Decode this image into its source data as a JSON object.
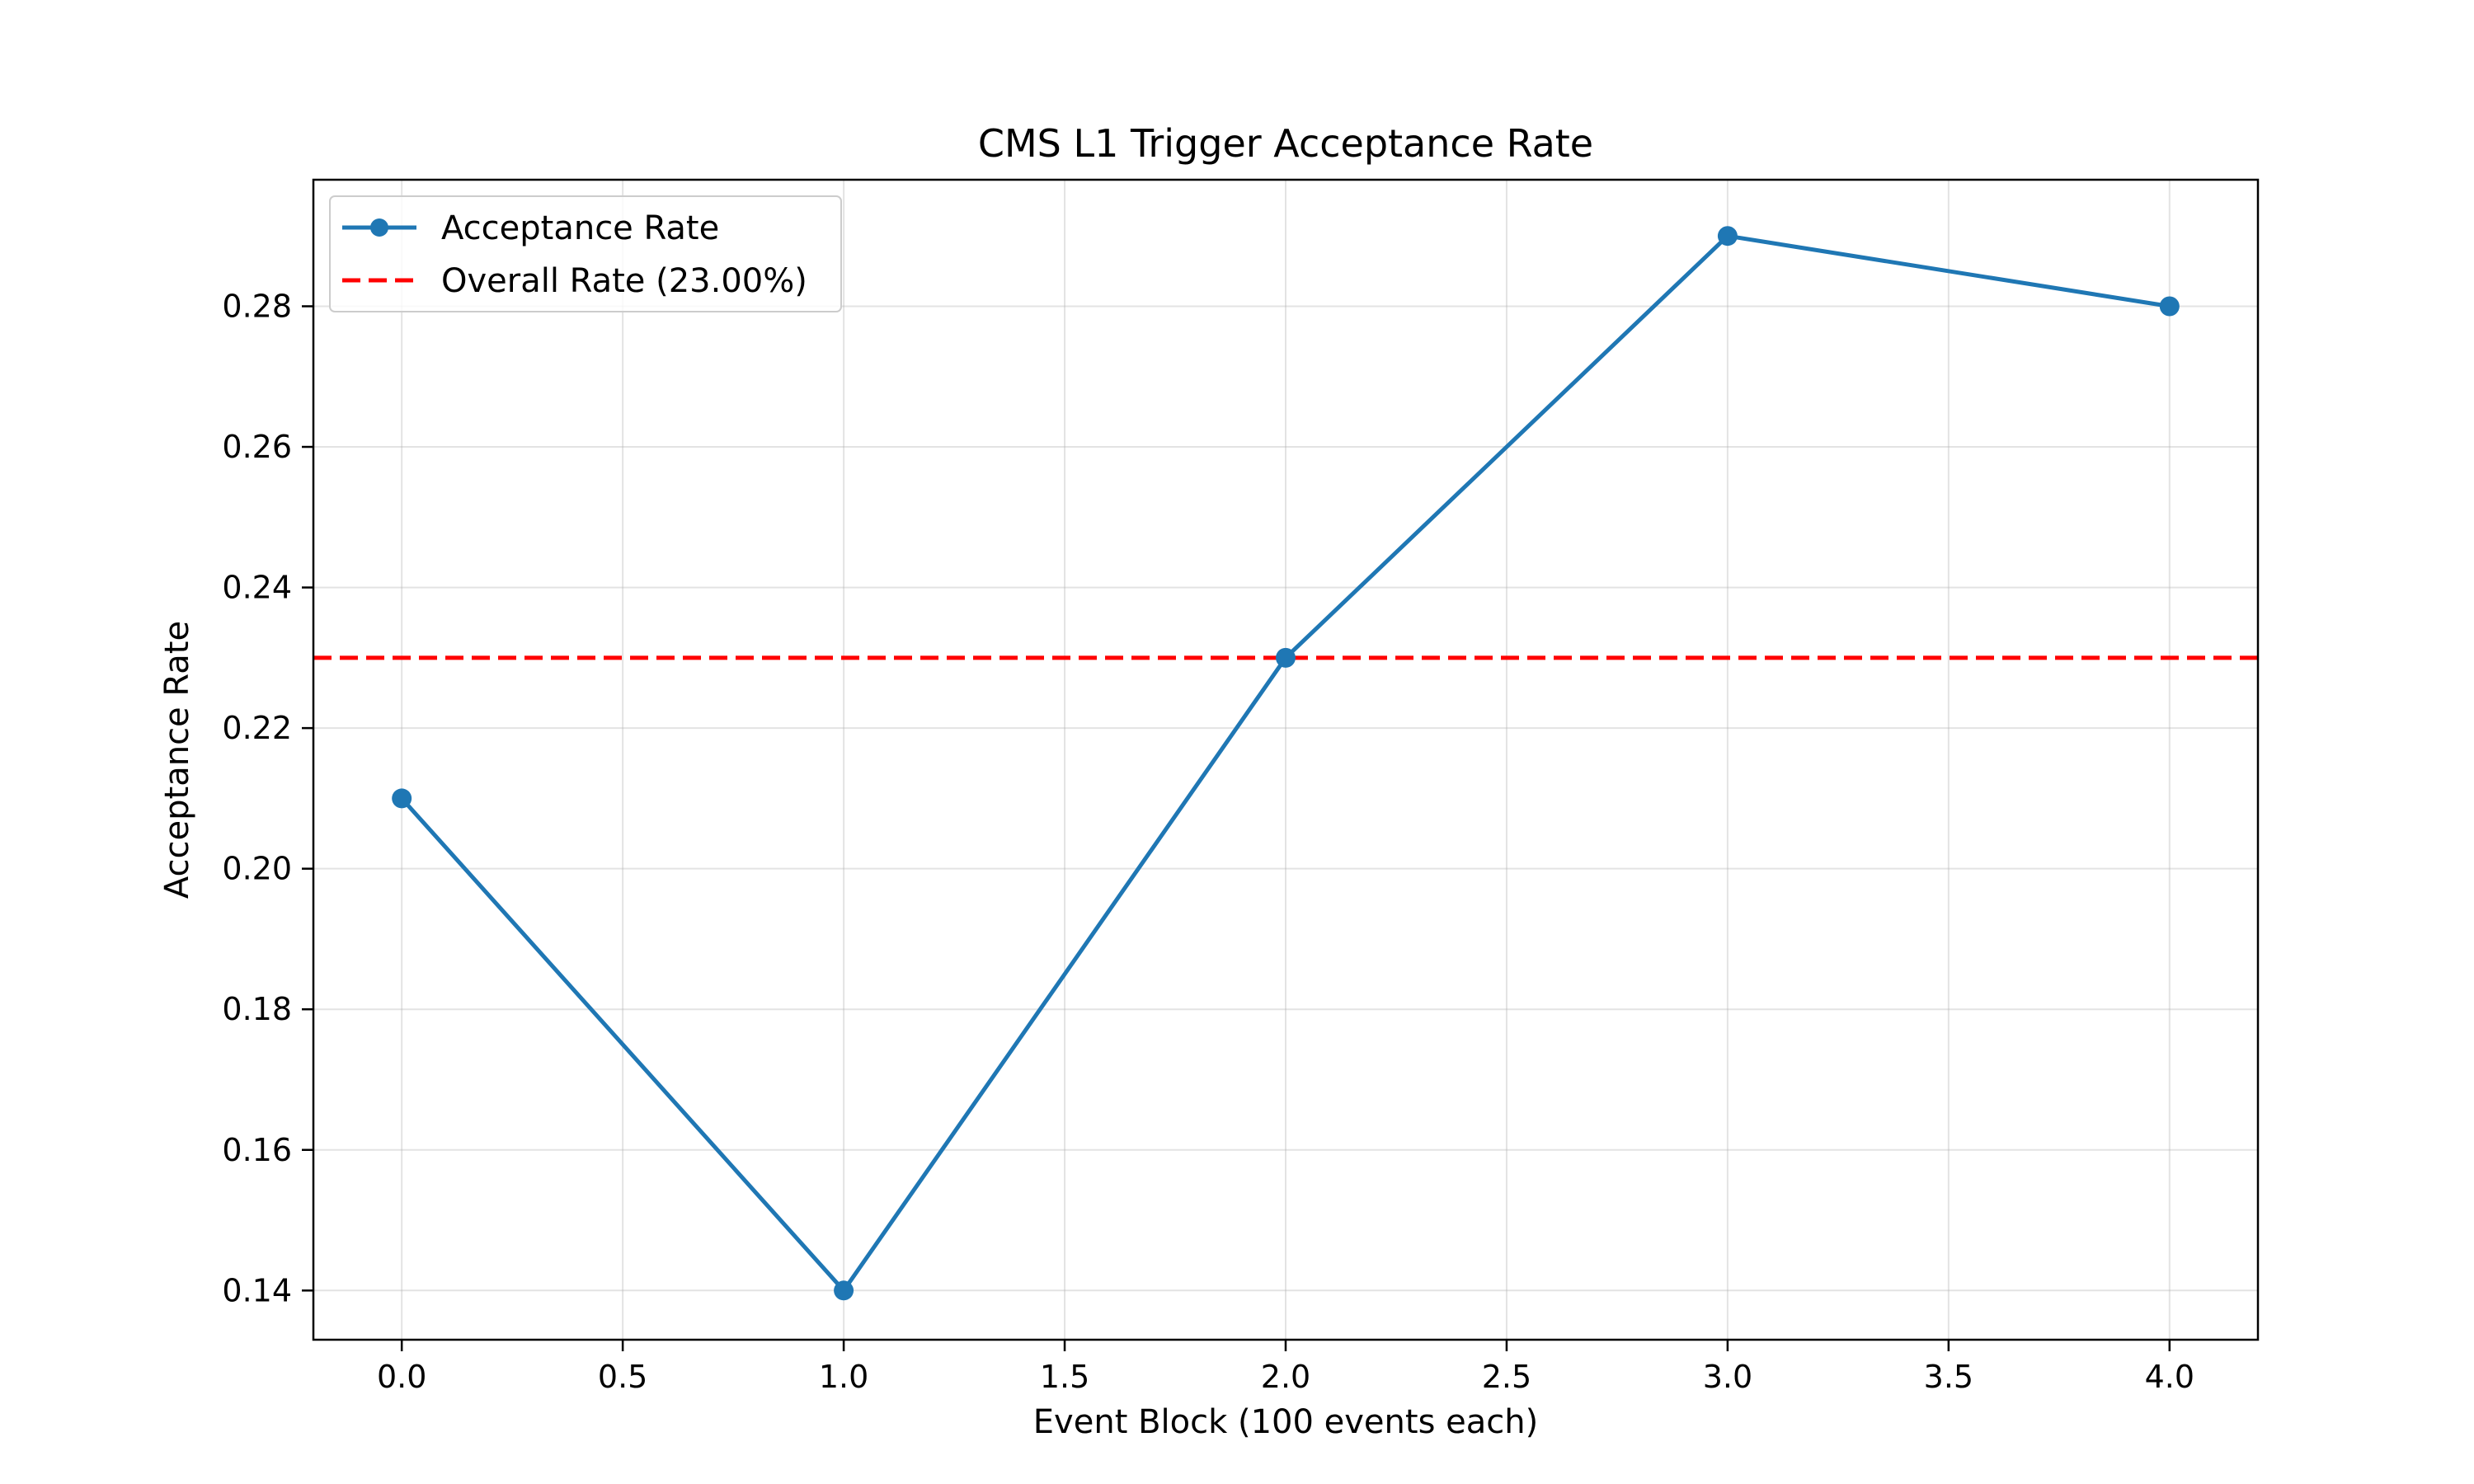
{
  "chart_data": {
    "type": "line",
    "title": "CMS L1 Trigger Acceptance Rate",
    "xlabel": "Event Block (100 events each)",
    "ylabel": "Acceptance Rate",
    "xlim": [
      -0.2,
      4.2
    ],
    "ylim": [
      0.133,
      0.298
    ],
    "xticks": [
      "0.0",
      "0.5",
      "1.0",
      "1.5",
      "2.0",
      "2.5",
      "3.0",
      "3.5",
      "4.0"
    ],
    "yticks": [
      "0.14",
      "0.16",
      "0.18",
      "0.20",
      "0.22",
      "0.24",
      "0.26",
      "0.28"
    ],
    "grid": true,
    "legend_position": "top-left",
    "series": [
      {
        "name": "Acceptance Rate",
        "x": [
          0,
          1,
          2,
          3,
          4
        ],
        "y": [
          0.21,
          0.14,
          0.23,
          0.29,
          0.28
        ],
        "color": "#1f77b4",
        "marker": "circle",
        "style": "solid"
      }
    ],
    "reference_lines": [
      {
        "name": "Overall Rate (23.00%)",
        "y": 0.23,
        "color": "#ff0000",
        "style": "dashed"
      }
    ]
  }
}
